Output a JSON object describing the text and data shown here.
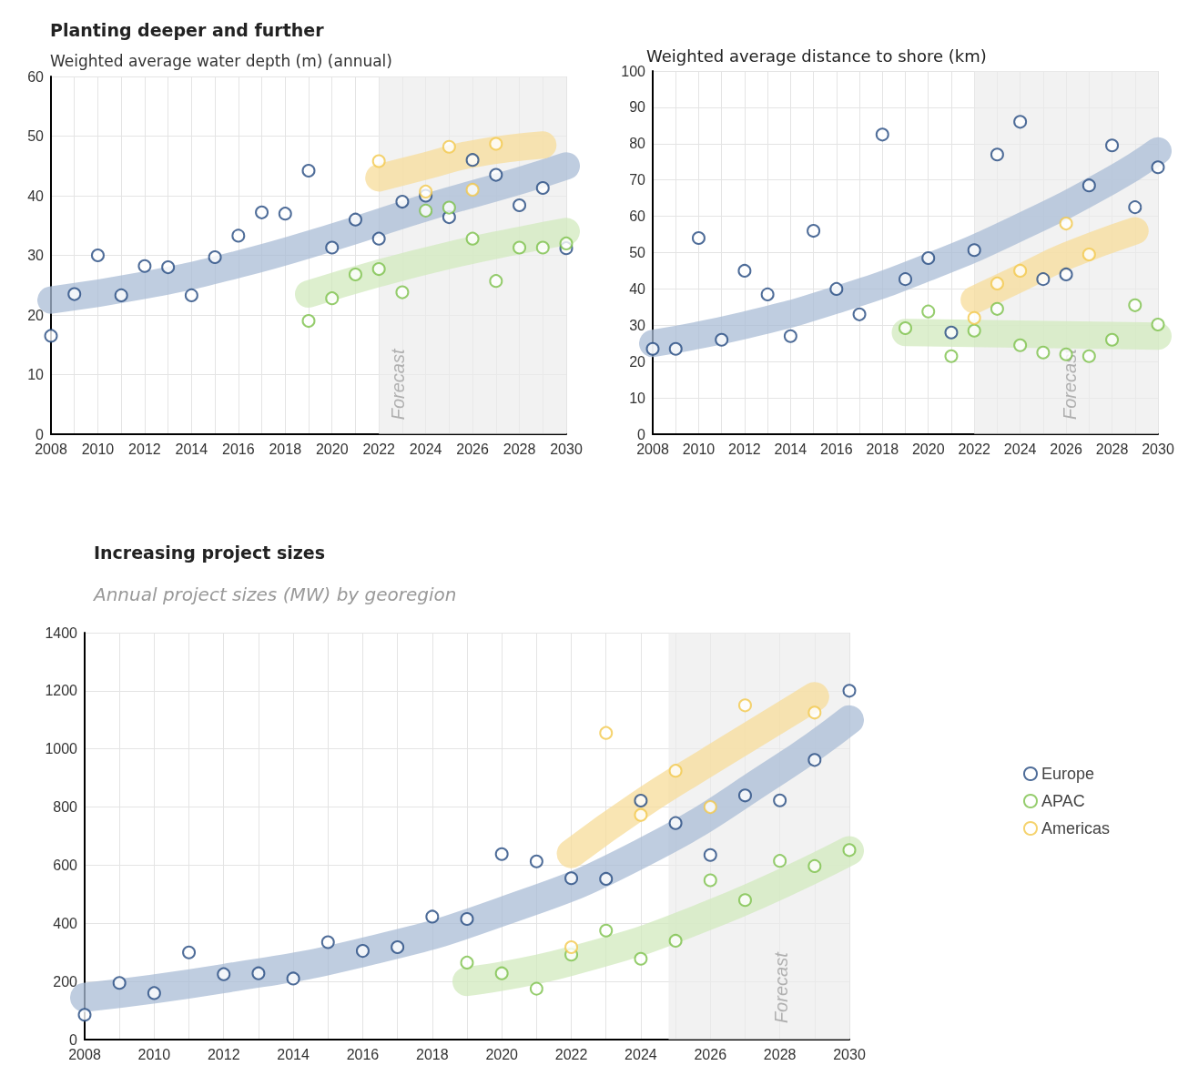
{
  "chart_data": [
    {
      "type": "scatter",
      "title": "Planting deeper and further",
      "subtitle": "Weighted average water depth (m) (annual)",
      "x": [
        2008,
        2009,
        2010,
        2011,
        2012,
        2013,
        2014,
        2015,
        2016,
        2017,
        2018,
        2019,
        2020,
        2021,
        2022,
        2023,
        2024,
        2025,
        2026,
        2027,
        2028,
        2029,
        2030
      ],
      "series": [
        {
          "type": "line",
          "marker": "none",
          "color": "#a9bcd6",
          "x": [
            2008,
            2012,
            2016,
            2020,
            2024,
            2028,
            2030
          ],
          "values": [
            22.5,
            25,
            28.5,
            33,
            38,
            42.5,
            45
          ]
        },
        {
          "type": "line",
          "marker": "none",
          "color": "#d2e9bd",
          "x": [
            2019,
            2022,
            2025,
            2028,
            2030
          ],
          "values": [
            23.5,
            27,
            30,
            32.5,
            34
          ]
        },
        {
          "type": "line",
          "marker": "none",
          "color": "#f7dc9a",
          "x": [
            2022,
            2024,
            2026,
            2029
          ],
          "values": [
            43,
            45,
            47,
            48.5
          ]
        },
        {
          "color": "#23497f",
          "values": [
            16.5,
            23.5,
            30,
            23.3,
            28.2,
            28,
            23.3,
            29.7,
            33.3,
            37.2,
            37,
            44.2,
            31.3,
            36,
            32.8,
            39,
            40,
            36.4,
            46,
            43.5,
            38.4,
            41.3,
            31.2
          ]
        },
        {
          "color": "#7cc04a",
          "values": [
            null,
            null,
            null,
            null,
            null,
            null,
            null,
            null,
            null,
            null,
            null,
            19,
            22.8,
            26.8,
            27.7,
            23.8,
            37.5,
            38,
            32.8,
            25.7,
            31.3,
            31.3,
            32
          ]
        },
        {
          "color": "#f2c84b",
          "values": [
            null,
            null,
            null,
            null,
            null,
            null,
            null,
            null,
            null,
            null,
            null,
            null,
            null,
            null,
            45.8,
            null,
            40.7,
            48.2,
            41,
            48.7,
            null,
            null,
            null
          ]
        }
      ],
      "marker": "circle",
      "grid": true,
      "xlim": [
        2008,
        2030
      ],
      "xticks": [
        2008,
        {
          "value": 2009,
          "label": null
        },
        2010,
        {
          "value": 2011,
          "label": null
        },
        2012,
        {
          "value": 2013,
          "label": null
        },
        2014,
        {
          "value": 2015,
          "label": null
        },
        2016,
        {
          "value": 2017,
          "label": null
        },
        2018,
        {
          "value": 2019,
          "label": null
        },
        2020,
        {
          "value": 2021,
          "label": null
        },
        2022,
        {
          "value": 2023,
          "label": null
        },
        2024,
        {
          "value": 2025,
          "label": null
        },
        2026,
        {
          "value": 2027,
          "label": null
        },
        2028,
        {
          "value": 2029,
          "label": null
        },
        2030
      ],
      "ylim": [
        0,
        60
      ],
      "yticks": [
        0,
        10,
        20,
        30,
        40,
        50,
        60
      ],
      "bands": [
        {
          "axis": "x",
          "from": 2022,
          "to": 2030,
          "label": "Forecast",
          "color": "#ebebeb"
        }
      ]
    },
    {
      "type": "scatter",
      "title": "Weighted average distance to shore (km)",
      "x": [
        2008,
        2009,
        2010,
        2011,
        2012,
        2013,
        2014,
        2015,
        2016,
        2017,
        2018,
        2019,
        2020,
        2021,
        2022,
        2023,
        2024,
        2025,
        2026,
        2027,
        2028,
        2029,
        2030
      ],
      "series": [
        {
          "type": "line",
          "marker": "none",
          "color": "#a9bcd6",
          "x": [
            2008,
            2012,
            2016,
            2020,
            2024,
            2028,
            2030
          ],
          "values": [
            25,
            30,
            37,
            46,
            57,
            70,
            78
          ]
        },
        {
          "type": "line",
          "marker": "none",
          "color": "#d2e9bd",
          "x": [
            2019,
            2030
          ],
          "values": [
            28,
            27
          ]
        },
        {
          "type": "line",
          "marker": "none",
          "color": "#f7dc9a",
          "x": [
            2022,
            2024,
            2026,
            2029
          ],
          "values": [
            37,
            43,
            49,
            56
          ]
        },
        {
          "color": "#23497f",
          "values": [
            23.5,
            23.5,
            54,
            26,
            45,
            38.5,
            27,
            56,
            40,
            33,
            82.5,
            42.7,
            48.5,
            28,
            50.7,
            77,
            86,
            42.7,
            44,
            68.5,
            79.5,
            62.5,
            73.5
          ]
        },
        {
          "color": "#7cc04a",
          "values": [
            null,
            null,
            null,
            null,
            null,
            null,
            null,
            null,
            null,
            null,
            null,
            29.2,
            33.8,
            21.5,
            28.5,
            34.5,
            24.5,
            22.5,
            22,
            21.5,
            26,
            35.5,
            30.2
          ]
        },
        {
          "color": "#f2c84b",
          "values": [
            null,
            null,
            null,
            null,
            null,
            null,
            null,
            null,
            null,
            null,
            null,
            null,
            null,
            null,
            32,
            41.5,
            45,
            null,
            58,
            49.5,
            null,
            null,
            null
          ]
        }
      ],
      "marker": "circle",
      "grid": true,
      "xlim": [
        2008,
        2030
      ],
      "xticks": [
        2008,
        {
          "value": 2009,
          "label": null
        },
        2010,
        {
          "value": 2011,
          "label": null
        },
        2012,
        {
          "value": 2013,
          "label": null
        },
        2014,
        {
          "value": 2015,
          "label": null
        },
        2016,
        {
          "value": 2017,
          "label": null
        },
        2018,
        {
          "value": 2019,
          "label": null
        },
        2020,
        {
          "value": 2021,
          "label": null
        },
        2022,
        {
          "value": 2023,
          "label": null
        },
        2024,
        {
          "value": 2025,
          "label": null
        },
        2026,
        {
          "value": 2027,
          "label": null
        },
        2028,
        {
          "value": 2029,
          "label": null
        },
        2030
      ],
      "ylim": [
        0,
        100
      ],
      "yticks": [
        0,
        10,
        20,
        30,
        40,
        50,
        60,
        70,
        80,
        90,
        100
      ],
      "bands": [
        {
          "axis": "x",
          "from": 2022,
          "to": 2030,
          "label": "Forecast",
          "color": "#ebebeb"
        }
      ]
    },
    {
      "type": "scatter",
      "title": "Increasing project sizes",
      "subtitle": "Annual project sizes (MW) by georegion",
      "x": [
        2008,
        2009,
        2010,
        2011,
        2012,
        2013,
        2014,
        2015,
        2016,
        2017,
        2018,
        2019,
        2020,
        2021,
        2022,
        2023,
        2024,
        2025,
        2026,
        2027,
        2028,
        2029,
        2030
      ],
      "series": [
        {
          "type": "line",
          "marker": "none",
          "color": "#a9bcd6",
          "x": [
            2008,
            2012,
            2016,
            2020,
            2024,
            2028,
            2030
          ],
          "values": [
            145,
            210,
            300,
            440,
            640,
            930,
            1100
          ]
        },
        {
          "type": "line",
          "marker": "none",
          "color": "#d2e9bd",
          "x": [
            2019,
            2022,
            2026,
            2030
          ],
          "values": [
            200,
            270,
            430,
            650
          ]
        },
        {
          "type": "line",
          "marker": "none",
          "color": "#f7dc9a",
          "x": [
            2022,
            2024,
            2026,
            2029
          ],
          "values": [
            640,
            810,
            960,
            1180
          ]
        },
        {
          "name": "Europe",
          "color": "#23497f",
          "values": [
            85,
            195,
            160,
            300,
            225,
            228,
            210,
            335,
            305,
            318,
            423,
            415,
            638,
            613,
            555,
            553,
            822,
            745,
            635,
            840,
            823,
            962,
            1200
          ]
        },
        {
          "name": "APAC",
          "color": "#7cc04a",
          "values": [
            null,
            null,
            null,
            null,
            null,
            null,
            null,
            null,
            null,
            null,
            null,
            265,
            228,
            175,
            292,
            375,
            278,
            340,
            548,
            480,
            615,
            597,
            652
          ]
        },
        {
          "name": "Americas",
          "color": "#f2c84b",
          "values": [
            null,
            null,
            null,
            null,
            null,
            null,
            null,
            null,
            null,
            null,
            null,
            null,
            null,
            null,
            318,
            1055,
            773,
            925,
            800,
            1150,
            null,
            1125,
            null
          ]
        }
      ],
      "marker": "circle",
      "grid": true,
      "legend": "right",
      "xlim": [
        2008,
        2030
      ],
      "xticks": [
        2008,
        {
          "value": 2009,
          "label": null
        },
        2010,
        {
          "value": 2011,
          "label": null
        },
        2012,
        {
          "value": 2013,
          "label": null
        },
        2014,
        {
          "value": 2015,
          "label": null
        },
        2016,
        {
          "value": 2017,
          "label": null
        },
        2018,
        {
          "value": 2019,
          "label": null
        },
        2020,
        {
          "value": 2021,
          "label": null
        },
        2022,
        {
          "value": 2023,
          "label": null
        },
        2024,
        {
          "value": 2025,
          "label": null
        },
        2026,
        {
          "value": 2027,
          "label": null
        },
        2028,
        {
          "value": 2029,
          "label": null
        },
        2030
      ],
      "ylim": [
        0,
        1400
      ],
      "yticks": [
        0,
        200,
        400,
        600,
        800,
        1000,
        1200,
        1400
      ],
      "bands": [
        {
          "axis": "x",
          "from": 2024.8,
          "to": 2030,
          "label": "Forecast",
          "color": "#ebebeb"
        }
      ]
    }
  ]
}
